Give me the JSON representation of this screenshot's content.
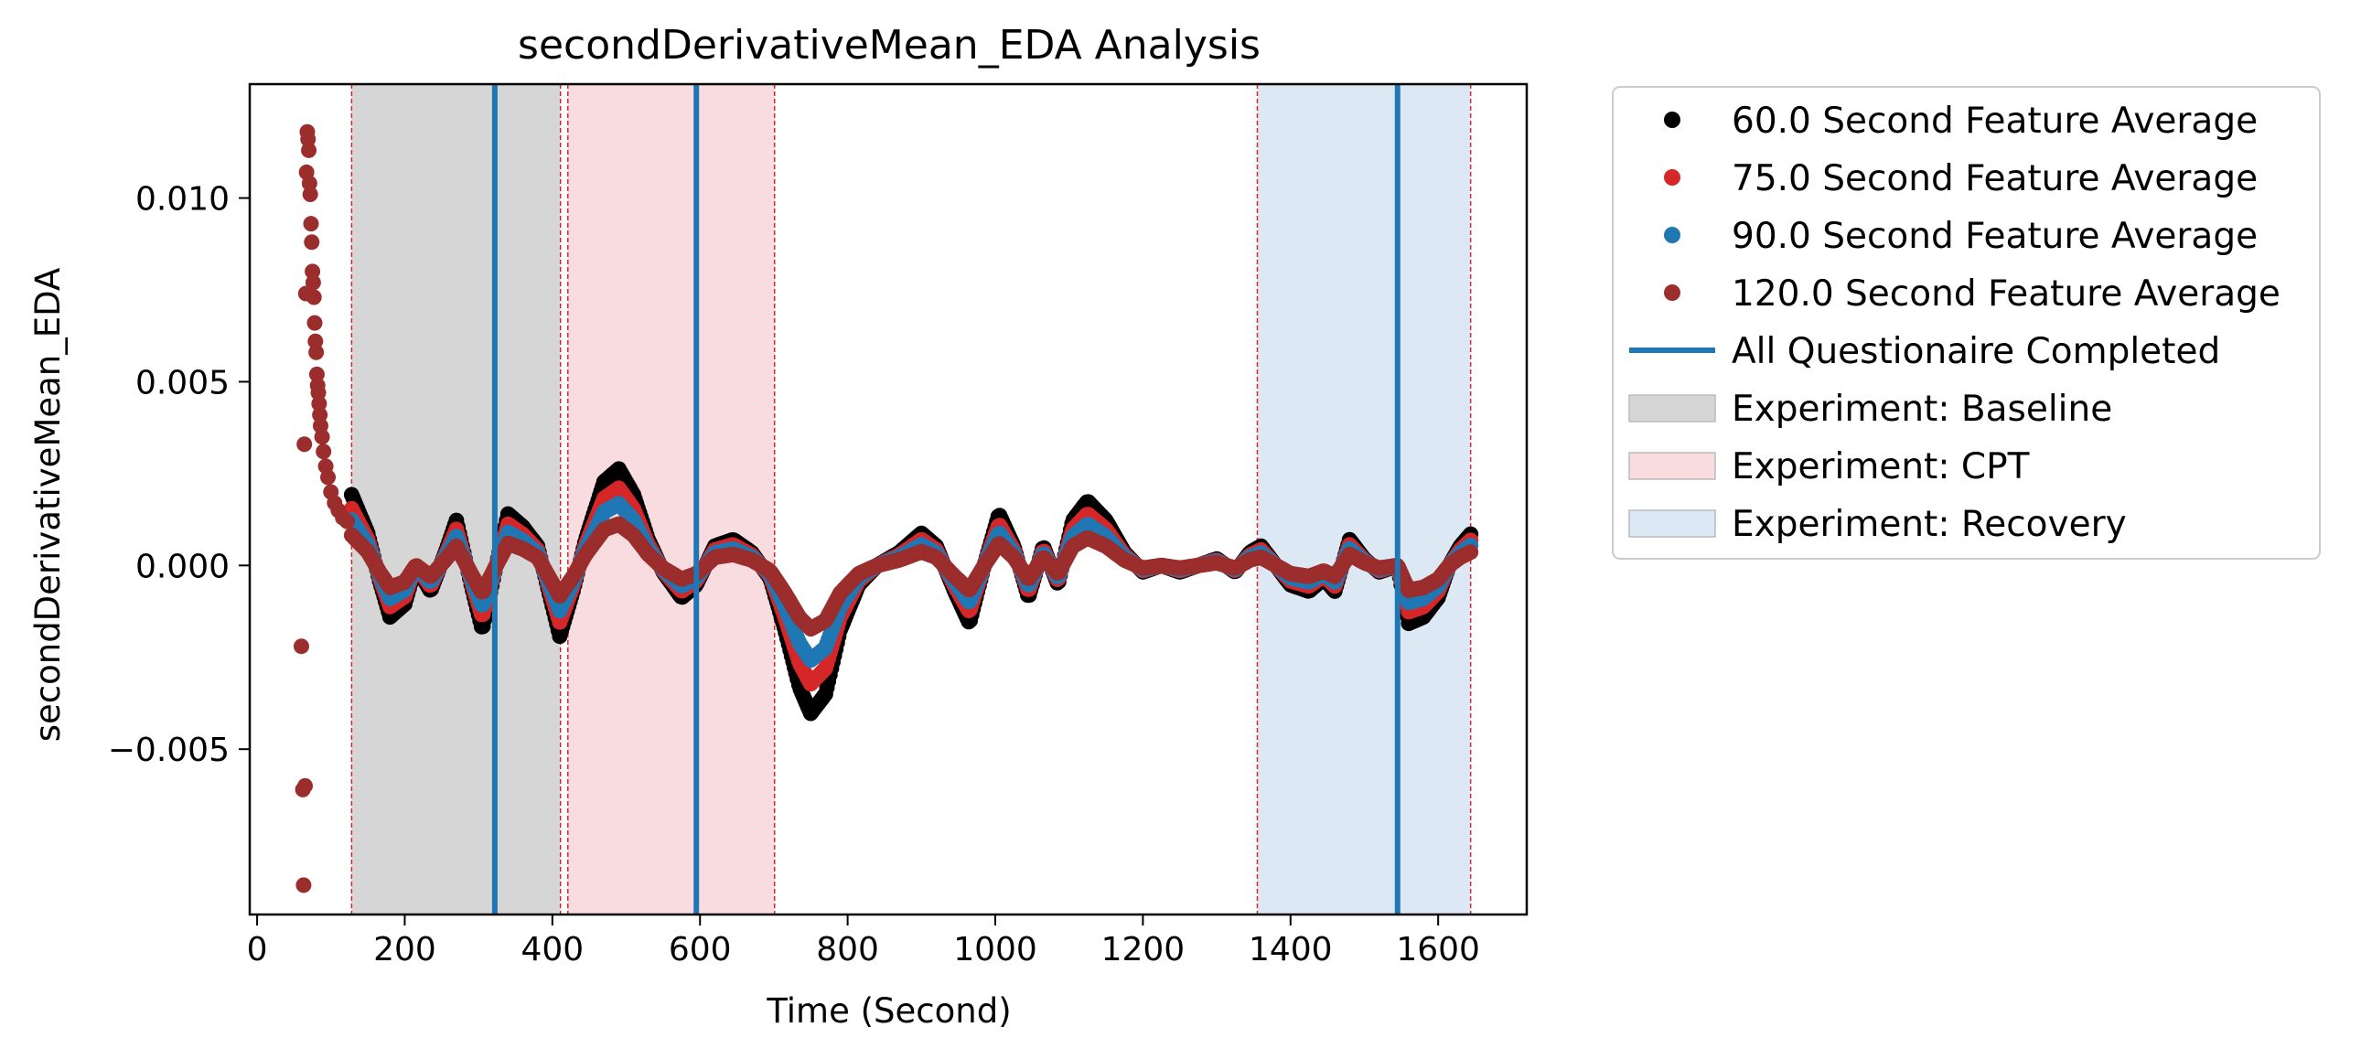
{
  "chart_data": {
    "type": "scatter",
    "title": "secondDerivativeMean_EDA Analysis",
    "xlabel": "Time (Second)",
    "ylabel": "secondDerivativeMean_EDA",
    "xlim": [
      -10,
      1720
    ],
    "ylim": [
      -0.0095,
      0.0131
    ],
    "x_ticks": [
      0,
      200,
      400,
      600,
      800,
      1000,
      1200,
      1400,
      1600
    ],
    "x_tick_labels": [
      "0",
      "200",
      "400",
      "600",
      "800",
      "1000",
      "1200",
      "1400",
      "1600"
    ],
    "y_ticks": [
      -0.005,
      0.0,
      0.005,
      0.01
    ],
    "y_tick_labels": [
      "−0.005",
      "0.000",
      "0.005",
      "0.010"
    ],
    "grid": false,
    "legend_position": "outside-right",
    "regions": [
      {
        "label": "Experiment: Baseline",
        "start": 128,
        "end": 411,
        "color": "#d6d6d6"
      },
      {
        "label": "Experiment: CPT",
        "start": 421,
        "end": 701,
        "color": "#f9dcdf"
      },
      {
        "label": "Experiment: Recovery",
        "start": 1355,
        "end": 1644,
        "color": "#dce8f3"
      }
    ],
    "region_edge_color": "#d62728",
    "questionnaire_lines": {
      "label": "All Questionaire Completed",
      "x": [
        322,
        595,
        1545
      ],
      "color": "#1f77b4"
    },
    "series": [
      {
        "name": "60.0 Second Feature Average",
        "color": "#000000",
        "amp": 1.75,
        "x_start": 128
      },
      {
        "name": "75.0 Second Feature Average",
        "color": "#d62728",
        "amp": 1.4,
        "x_start": 128
      },
      {
        "name": "90.0 Second Feature Average",
        "color": "#1f77b4",
        "amp": 1.12,
        "x_start": 128
      },
      {
        "name": "120.0 Second Feature Average",
        "color": "#9b2d2d",
        "amp": 0.75,
        "x_start": 60
      }
    ],
    "baseline_curve": [
      [
        128,
        0.0011
      ],
      [
        150,
        0.0005
      ],
      [
        165,
        -0.0002
      ],
      [
        180,
        -0.0008
      ],
      [
        200,
        -0.0006
      ],
      [
        215,
        0.0
      ],
      [
        235,
        -0.0004
      ],
      [
        255,
        0.0002
      ],
      [
        270,
        0.0007
      ],
      [
        290,
        -0.0003
      ],
      [
        305,
        -0.001
      ],
      [
        322,
        -0.0001
      ],
      [
        340,
        0.0008
      ],
      [
        360,
        0.0006
      ],
      [
        380,
        0.0003
      ],
      [
        395,
        -0.0004
      ],
      [
        410,
        -0.0011
      ],
      [
        428,
        -0.0004
      ],
      [
        445,
        0.0004
      ],
      [
        470,
        0.0013
      ],
      [
        490,
        0.0015
      ],
      [
        510,
        0.0011
      ],
      [
        530,
        0.0004
      ],
      [
        550,
        -0.0001
      ],
      [
        575,
        -0.0005
      ],
      [
        595,
        -0.0003
      ],
      [
        620,
        0.0003
      ],
      [
        645,
        0.0004
      ],
      [
        670,
        0.0002
      ],
      [
        695,
        -0.0002
      ],
      [
        715,
        -0.001
      ],
      [
        735,
        -0.0019
      ],
      [
        750,
        -0.0023
      ],
      [
        770,
        -0.002
      ],
      [
        790,
        -0.001
      ],
      [
        815,
        -0.0003
      ],
      [
        840,
        0.0
      ],
      [
        870,
        0.0002
      ],
      [
        900,
        0.0005
      ],
      [
        920,
        0.0003
      ],
      [
        945,
        -0.0004
      ],
      [
        965,
        -0.0009
      ],
      [
        985,
        0.0
      ],
      [
        1005,
        0.0008
      ],
      [
        1025,
        0.0003
      ],
      [
        1045,
        -0.0005
      ],
      [
        1065,
        0.0003
      ],
      [
        1085,
        -0.0003
      ],
      [
        1105,
        0.0007
      ],
      [
        1125,
        0.001
      ],
      [
        1150,
        0.0007
      ],
      [
        1175,
        0.0002
      ],
      [
        1200,
        -0.0001
      ],
      [
        1225,
        0.0
      ],
      [
        1250,
        -0.0001
      ],
      [
        1275,
        0.0
      ],
      [
        1300,
        0.0001
      ],
      [
        1325,
        -0.0001
      ],
      [
        1345,
        0.0002
      ],
      [
        1360,
        0.0003
      ],
      [
        1380,
        0.0
      ],
      [
        1400,
        -0.0003
      ],
      [
        1425,
        -0.0004
      ],
      [
        1445,
        -0.0002
      ],
      [
        1460,
        -0.0004
      ],
      [
        1480,
        0.0004
      ],
      [
        1500,
        0.0001
      ],
      [
        1520,
        -0.0001
      ],
      [
        1545,
        0.0
      ],
      [
        1560,
        -0.0009
      ],
      [
        1580,
        -0.0008
      ],
      [
        1600,
        -0.0005
      ],
      [
        1615,
        0.0
      ],
      [
        1630,
        0.0003
      ],
      [
        1645,
        0.0005
      ]
    ],
    "early_scatter": [
      [
        60,
        -0.0022
      ],
      [
        62,
        -0.0061
      ],
      [
        63,
        -0.0087
      ],
      [
        65,
        -0.006
      ],
      [
        64,
        0.0033
      ],
      [
        66,
        0.0074
      ],
      [
        67,
        0.0107
      ],
      [
        68,
        0.0118
      ],
      [
        69,
        0.0116
      ],
      [
        70,
        0.0113
      ],
      [
        71,
        0.0104
      ],
      [
        72,
        0.0101
      ],
      [
        73,
        0.0093
      ],
      [
        74,
        0.0088
      ],
      [
        75,
        0.008
      ],
      [
        76,
        0.0077
      ],
      [
        77,
        0.0073
      ],
      [
        78,
        0.0066
      ],
      [
        79,
        0.0061
      ],
      [
        80,
        0.0058
      ],
      [
        81,
        0.0052
      ],
      [
        82,
        0.0049
      ],
      [
        83,
        0.0047
      ],
      [
        84,
        0.0044
      ],
      [
        85,
        0.0041
      ],
      [
        86,
        0.0038
      ],
      [
        88,
        0.0035
      ],
      [
        90,
        0.0031
      ],
      [
        93,
        0.0027
      ],
      [
        96,
        0.0024
      ],
      [
        100,
        0.002
      ],
      [
        105,
        0.0017
      ],
      [
        110,
        0.0015
      ],
      [
        116,
        0.0013
      ],
      [
        122,
        0.0012
      ]
    ]
  },
  "legend": {
    "entries": [
      {
        "label": "60.0 Second Feature Average",
        "kind": "marker",
        "color": "#000000"
      },
      {
        "label": "75.0 Second Feature Average",
        "kind": "marker",
        "color": "#d62728"
      },
      {
        "label": "90.0 Second Feature Average",
        "kind": "marker",
        "color": "#1f77b4"
      },
      {
        "label": "120.0 Second Feature Average",
        "kind": "marker",
        "color": "#9b2d2d"
      },
      {
        "label": "All Questionaire Completed",
        "kind": "line",
        "color": "#1f77b4"
      },
      {
        "label": "Experiment: Baseline",
        "kind": "patch",
        "color": "#d6d6d6"
      },
      {
        "label": "Experiment: CPT",
        "kind": "patch",
        "color": "#f9dcdf"
      },
      {
        "label": "Experiment: Recovery",
        "kind": "patch",
        "color": "#dce8f3"
      }
    ]
  }
}
